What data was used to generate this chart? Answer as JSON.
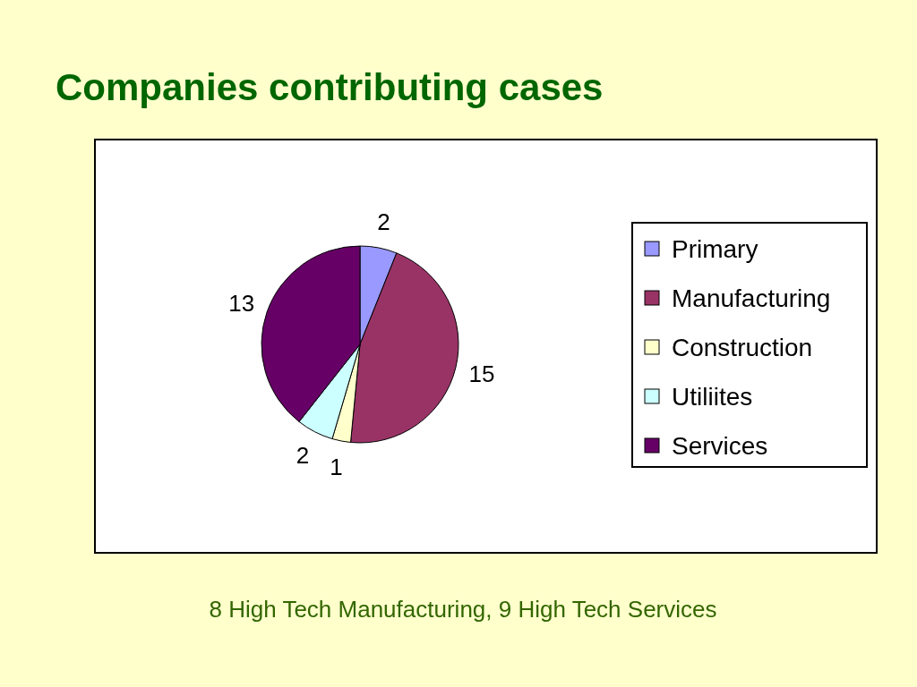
{
  "chart_data": {
    "type": "pie",
    "title": "Companies contributing cases",
    "categories": [
      "Primary",
      "Manufacturing",
      "Construction",
      "Utiliites",
      "Services"
    ],
    "values": [
      2,
      15,
      1,
      2,
      13
    ],
    "colors": [
      "#9999ff",
      "#993366",
      "#ffffcc",
      "#ccffff",
      "#660066"
    ],
    "data_labels": true,
    "legend": "right",
    "annotations": [
      "8 High Tech Manufacturing, 9 High Tech Services"
    ]
  }
}
